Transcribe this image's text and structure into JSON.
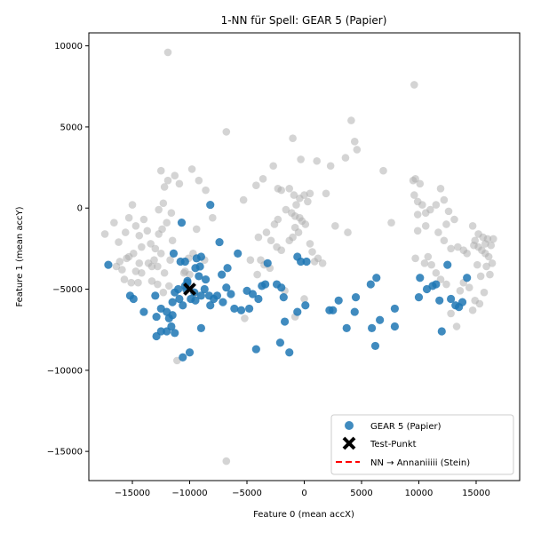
{
  "chart_data": {
    "type": "scatter",
    "title": "1-NN für Spell: GEAR 5 (Papier)",
    "xlabel": "Feature 0 (mean accX)",
    "ylabel": "Feature 1 (mean accY)",
    "xlim": [
      -18800,
      18800
    ],
    "ylim": [
      -16800,
      10800
    ],
    "xticks": [
      -15000,
      -10000,
      -5000,
      0,
      5000,
      10000,
      15000
    ],
    "xtick_labels": [
      "−15000",
      "−10000",
      "−5000",
      "0",
      "5000",
      "10000",
      "15000"
    ],
    "yticks": [
      -15000,
      -10000,
      -5000,
      0,
      5000,
      10000
    ],
    "ytick_labels": [
      "−15000",
      "−10000",
      "−5000",
      "0",
      "5000",
      "10000"
    ],
    "grid": false,
    "legend_position": "lower-right",
    "colors": {
      "gear5": "#1f77b4",
      "other": "#a9a9a9",
      "test": "#000000",
      "nn": "#ff0000"
    },
    "legend": [
      {
        "key": "gear5",
        "label": "GEAR 5 (Papier)",
        "marker": "circle"
      },
      {
        "key": "test",
        "label": "Test-Punkt",
        "marker": "x"
      },
      {
        "key": "nn",
        "label": "NN → Annaniiiii (Stein)",
        "marker": "dashed-line"
      }
    ],
    "series": [
      {
        "name": "GEAR 5 (Papier)",
        "points": [
          [
            -17100,
            -3500
          ],
          [
            -15200,
            -5400
          ],
          [
            -14900,
            -5600
          ],
          [
            -14000,
            -6400
          ],
          [
            -13000,
            -5400
          ],
          [
            -12900,
            -6700
          ],
          [
            -12500,
            -6200
          ],
          [
            -12000,
            -6400
          ],
          [
            -11800,
            -6800
          ],
          [
            -11600,
            -7300
          ],
          [
            -12000,
            -7600
          ],
          [
            -12500,
            -7600
          ],
          [
            -12900,
            -7900
          ],
          [
            -11500,
            -5800
          ],
          [
            -11300,
            -5200
          ],
          [
            -11000,
            -5000
          ],
          [
            -10900,
            -5600
          ],
          [
            -10600,
            -6000
          ],
          [
            -10300,
            -5000
          ],
          [
            -10200,
            -4500
          ],
          [
            -9900,
            -5600
          ],
          [
            -9600,
            -5200
          ],
          [
            -9500,
            -3700
          ],
          [
            -9200,
            -4200
          ],
          [
            -9100,
            -3600
          ],
          [
            -9500,
            -5700
          ],
          [
            -9000,
            -5400
          ],
          [
            -8700,
            -5000
          ],
          [
            -8600,
            -4400
          ],
          [
            -8300,
            -5400
          ],
          [
            -8200,
            -6000
          ],
          [
            -7900,
            -5600
          ],
          [
            -7600,
            -5400
          ],
          [
            -7100,
            -5800
          ],
          [
            -6800,
            -4900
          ],
          [
            -6400,
            -5300
          ],
          [
            -6100,
            -6200
          ],
          [
            -5800,
            -2800
          ],
          [
            -5500,
            -6300
          ],
          [
            -5000,
            -5100
          ],
          [
            -4800,
            -6200
          ],
          [
            -4500,
            -5300
          ],
          [
            -4000,
            -5600
          ],
          [
            -3700,
            -4800
          ],
          [
            -3400,
            -4700
          ],
          [
            -3200,
            -3400
          ],
          [
            -2400,
            -4700
          ],
          [
            -2000,
            -4900
          ],
          [
            -1800,
            -5500
          ],
          [
            -2100,
            -8300
          ],
          [
            -1300,
            -8900
          ],
          [
            -600,
            -6400
          ],
          [
            -600,
            -3000
          ],
          [
            -300,
            -3300
          ],
          [
            200,
            -3300
          ],
          [
            100,
            -6000
          ],
          [
            -1700,
            -7000
          ],
          [
            2200,
            -6300
          ],
          [
            2500,
            -6300
          ],
          [
            3000,
            -5700
          ],
          [
            3700,
            -7400
          ],
          [
            4400,
            -6400
          ],
          [
            4500,
            -5500
          ],
          [
            5800,
            -4700
          ],
          [
            6300,
            -4300
          ],
          [
            5900,
            -7400
          ],
          [
            6200,
            -8500
          ],
          [
            6600,
            -6900
          ],
          [
            7900,
            -7300
          ],
          [
            7900,
            -6200
          ],
          [
            10100,
            -4300
          ],
          [
            10000,
            -5500
          ],
          [
            10700,
            -5000
          ],
          [
            11200,
            -4800
          ],
          [
            11500,
            -4700
          ],
          [
            11800,
            -5700
          ],
          [
            12000,
            -7600
          ],
          [
            12500,
            -3500
          ],
          [
            12800,
            -5600
          ],
          [
            13200,
            -6000
          ],
          [
            13800,
            -5800
          ],
          [
            13500,
            -6100
          ],
          [
            14200,
            -4300
          ],
          [
            -10600,
            -9200
          ],
          [
            -10000,
            -8900
          ],
          [
            -11300,
            -7700
          ],
          [
            -9000,
            -7400
          ],
          [
            -11400,
            -2800
          ],
          [
            -10800,
            -3300
          ],
          [
            -10400,
            -3300
          ],
          [
            -10700,
            -900
          ],
          [
            -9400,
            -3100
          ],
          [
            -9000,
            -3000
          ],
          [
            -6700,
            -3700
          ],
          [
            -4200,
            -8700
          ],
          [
            -8200,
            200
          ],
          [
            -7400,
            -2100
          ],
          [
            -7200,
            -4100
          ],
          [
            -10400,
            -4800
          ],
          [
            -10200,
            -4600
          ],
          [
            -11500,
            -6600
          ]
        ]
      },
      {
        "name": "",
        "points": [
          [
            -11900,
            9600
          ],
          [
            -6800,
            4700
          ],
          [
            -6800,
            -15600
          ],
          [
            9600,
            7600
          ],
          [
            4100,
            5400
          ],
          [
            4400,
            4100
          ],
          [
            4600,
            3600
          ],
          [
            3600,
            3100
          ],
          [
            6900,
            2300
          ],
          [
            2300,
            2600
          ],
          [
            1100,
            2900
          ],
          [
            -1000,
            4300
          ],
          [
            -300,
            3000
          ],
          [
            -2700,
            2600
          ],
          [
            -3600,
            1800
          ],
          [
            -4200,
            1400
          ],
          [
            -5300,
            500
          ],
          [
            -2300,
            1200
          ],
          [
            -2000,
            1100
          ],
          [
            -1300,
            1200
          ],
          [
            -900,
            800
          ],
          [
            -700,
            200
          ],
          [
            -400,
            600
          ],
          [
            0,
            800
          ],
          [
            300,
            400
          ],
          [
            500,
            900
          ],
          [
            1900,
            900
          ],
          [
            -1600,
            -100
          ],
          [
            -1100,
            -300
          ],
          [
            -800,
            -500
          ],
          [
            -400,
            -600
          ],
          [
            -200,
            -800
          ],
          [
            100,
            -1000
          ],
          [
            -2300,
            -700
          ],
          [
            -2600,
            -1000
          ],
          [
            -3300,
            -1500
          ],
          [
            -4000,
            -1800
          ],
          [
            -2900,
            -2000
          ],
          [
            -2400,
            -2400
          ],
          [
            -2000,
            -2600
          ],
          [
            -1300,
            -2000
          ],
          [
            -1000,
            -1800
          ],
          [
            -800,
            -1200
          ],
          [
            -500,
            -1500
          ],
          [
            500,
            -2200
          ],
          [
            700,
            -2700
          ],
          [
            900,
            -3300
          ],
          [
            1200,
            -3100
          ],
          [
            1600,
            -3400
          ],
          [
            -3500,
            -3500
          ],
          [
            -3800,
            -3200
          ],
          [
            -4100,
            -4100
          ],
          [
            -1700,
            -5100
          ],
          [
            -800,
            -6700
          ],
          [
            0,
            -5600
          ],
          [
            -5200,
            -6800
          ],
          [
            -4700,
            -3200
          ],
          [
            -3000,
            -3700
          ],
          [
            2700,
            -1100
          ],
          [
            3800,
            -1500
          ],
          [
            7600,
            -900
          ],
          [
            11900,
            1200
          ],
          [
            12200,
            500
          ],
          [
            11500,
            200
          ],
          [
            11000,
            -100
          ],
          [
            10600,
            -300
          ],
          [
            10300,
            200
          ],
          [
            9900,
            400
          ],
          [
            9600,
            800
          ],
          [
            9700,
            1800
          ],
          [
            10100,
            1500
          ],
          [
            9500,
            1700
          ],
          [
            12600,
            -200
          ],
          [
            13100,
            -700
          ],
          [
            12400,
            -1000
          ],
          [
            11700,
            -1500
          ],
          [
            12200,
            -2000
          ],
          [
            12800,
            -2500
          ],
          [
            13400,
            -2400
          ],
          [
            13900,
            -2600
          ],
          [
            14200,
            -2800
          ],
          [
            14700,
            -1100
          ],
          [
            14900,
            -2000
          ],
          [
            15200,
            -2400
          ],
          [
            15500,
            -2600
          ],
          [
            15800,
            -2800
          ],
          [
            16100,
            -3000
          ],
          [
            15800,
            -2200
          ],
          [
            16300,
            -2300
          ],
          [
            16000,
            -1900
          ],
          [
            16500,
            -1900
          ],
          [
            15600,
            -1800
          ],
          [
            15200,
            -1600
          ],
          [
            14800,
            -2300
          ],
          [
            15100,
            -3500
          ],
          [
            15400,
            -4200
          ],
          [
            15900,
            -3600
          ],
          [
            16200,
            -4100
          ],
          [
            16400,
            -3400
          ],
          [
            15700,
            -5200
          ],
          [
            15300,
            -5900
          ],
          [
            14700,
            -6300
          ],
          [
            14900,
            -5700
          ],
          [
            14400,
            -4900
          ],
          [
            13900,
            -4600
          ],
          [
            13600,
            -5100
          ],
          [
            13300,
            -7300
          ],
          [
            12800,
            -6500
          ],
          [
            12400,
            -4700
          ],
          [
            11900,
            -4400
          ],
          [
            11500,
            -4000
          ],
          [
            11100,
            -3500
          ],
          [
            10800,
            -3000
          ],
          [
            10500,
            -3400
          ],
          [
            9700,
            -3100
          ],
          [
            9900,
            -1400
          ],
          [
            10600,
            -1100
          ],
          [
            9900,
            -400
          ],
          [
            -16600,
            -900
          ],
          [
            -16200,
            -2100
          ],
          [
            -15600,
            -1500
          ],
          [
            -15300,
            -600
          ],
          [
            -15000,
            200
          ],
          [
            -14700,
            -1100
          ],
          [
            -14400,
            -1700
          ],
          [
            -14000,
            -700
          ],
          [
            -13700,
            -1400
          ],
          [
            -14200,
            -2400
          ],
          [
            -13400,
            -2200
          ],
          [
            -13000,
            -2500
          ],
          [
            -12700,
            -1600
          ],
          [
            -12400,
            -1300
          ],
          [
            -12000,
            -900
          ],
          [
            -11600,
            -300
          ],
          [
            -12300,
            300
          ],
          [
            -12700,
            -100
          ],
          [
            -12200,
            1300
          ],
          [
            -12500,
            2300
          ],
          [
            -11900,
            1700
          ],
          [
            -11300,
            2000
          ],
          [
            -10900,
            1500
          ],
          [
            -9800,
            2400
          ],
          [
            -9200,
            1700
          ],
          [
            -8600,
            1100
          ],
          [
            -8000,
            -600
          ],
          [
            -9400,
            -1300
          ],
          [
            -11500,
            -2000
          ],
          [
            -11700,
            -3200
          ],
          [
            -12500,
            -2800
          ],
          [
            -13100,
            -3200
          ],
          [
            -13600,
            -3400
          ],
          [
            -14200,
            -4000
          ],
          [
            -14500,
            -4600
          ],
          [
            -15100,
            -4600
          ],
          [
            -15700,
            -4400
          ],
          [
            -15900,
            -3800
          ],
          [
            -16400,
            -3600
          ],
          [
            -16100,
            -3300
          ],
          [
            -15500,
            -3100
          ],
          [
            -14900,
            -2800
          ],
          [
            -13300,
            -4500
          ],
          [
            -12800,
            -4700
          ],
          [
            -12300,
            -5200
          ],
          [
            -11800,
            -4800
          ],
          [
            -12200,
            -4000
          ],
          [
            -12800,
            -3600
          ],
          [
            -13300,
            -3600
          ],
          [
            -14400,
            -3400
          ],
          [
            -15300,
            -3000
          ],
          [
            -17400,
            -1600
          ],
          [
            -14700,
            -3900
          ],
          [
            -10400,
            -3900
          ],
          [
            -10000,
            -4100
          ],
          [
            -8700,
            -3200
          ],
          [
            -9700,
            -2800
          ],
          [
            -11100,
            -9400
          ],
          [
            -10500,
            -4000
          ],
          [
            -10100,
            -3100
          ],
          [
            -9400,
            -5300
          ]
        ]
      },
      {
        "name": "Test-Punkt",
        "points": [
          [
            -10000,
            -5000
          ]
        ]
      }
    ]
  }
}
